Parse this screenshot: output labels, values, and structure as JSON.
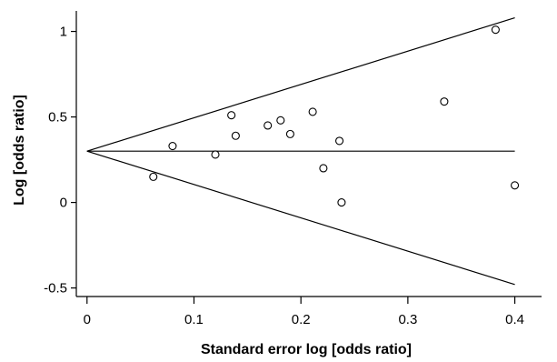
{
  "chart_data": {
    "type": "scatter",
    "title": "",
    "xlabel": "Standard error log [odds ratio]",
    "ylabel": "Log [odds ratio]",
    "xlim": [
      -0.01,
      0.425
    ],
    "ylim": [
      -0.55,
      1.12
    ],
    "xticks": [
      0,
      0.1,
      0.2,
      0.3,
      0.4
    ],
    "xtick_labels": [
      "0",
      "0.1",
      "0.2",
      "0.3",
      "0.4"
    ],
    "yticks": [
      -0.5,
      0,
      0.5,
      1
    ],
    "ytick_labels": [
      "-0.5",
      "0",
      "0.5",
      "1"
    ],
    "grid": false,
    "points": [
      {
        "x": 0.062,
        "y": 0.15
      },
      {
        "x": 0.08,
        "y": 0.33
      },
      {
        "x": 0.12,
        "y": 0.28
      },
      {
        "x": 0.135,
        "y": 0.51
      },
      {
        "x": 0.139,
        "y": 0.39
      },
      {
        "x": 0.169,
        "y": 0.45
      },
      {
        "x": 0.181,
        "y": 0.48
      },
      {
        "x": 0.19,
        "y": 0.4
      },
      {
        "x": 0.211,
        "y": 0.53
      },
      {
        "x": 0.221,
        "y": 0.2
      },
      {
        "x": 0.236,
        "y": 0.36
      },
      {
        "x": 0.238,
        "y": 0.0
      },
      {
        "x": 0.334,
        "y": 0.59
      },
      {
        "x": 0.382,
        "y": 1.01
      },
      {
        "x": 0.4,
        "y": 0.1
      }
    ],
    "reference_lines": [
      {
        "name": "pooled-estimate",
        "from": [
          0,
          0.3
        ],
        "to": [
          0.4,
          0.3
        ]
      },
      {
        "name": "upper-limit",
        "from": [
          0,
          0.3
        ],
        "to": [
          0.4,
          1.08
        ]
      },
      {
        "name": "lower-limit",
        "from": [
          0,
          0.3
        ],
        "to": [
          0.4,
          -0.48
        ]
      }
    ]
  }
}
